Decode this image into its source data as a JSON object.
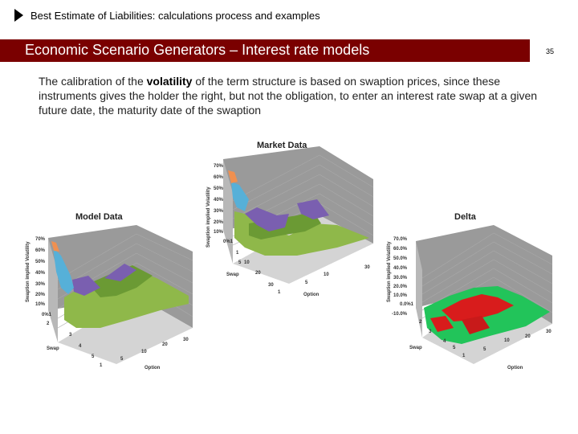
{
  "header": {
    "title": "Best Estimate of Liabilities: calculations process and examples"
  },
  "slide": {
    "title": "Economic Scenario Generators – Interest rate models",
    "page_number": "35",
    "accent_color": "#7a0000"
  },
  "body": {
    "part1": "The calibration of the ",
    "bold": "volatility",
    "part2": " of the term structure is based on swaption prices, since these instruments gives the holder the right, but not the obligation, to enter an interest rate swap at a given future date, the maturity date of the swaption"
  },
  "charts": {
    "market": {
      "title": "Market Data",
      "z_label": "Swaption implied Volatility",
      "z_ticks": [
        "70%",
        "60%",
        "50%",
        "40%",
        "30%",
        "20%",
        "10%",
        "0%1"
      ],
      "swap_label": "Swap",
      "swap_ticks": [
        "1",
        "5",
        "10",
        "20",
        "30"
      ],
      "option_label": "Option",
      "option_ticks": [
        "1",
        "5",
        "10",
        "30"
      ]
    },
    "model": {
      "title": "Model Data",
      "z_label": "Swaption implied Volatility",
      "z_ticks": [
        "70%",
        "60%",
        "50%",
        "40%",
        "30%",
        "20%",
        "10%",
        "0%1"
      ],
      "swap_label": "Swap",
      "swap_ticks": [
        "2",
        "3",
        "4",
        "5",
        "1"
      ],
      "option_label": "Option",
      "option_ticks": [
        "5",
        "10",
        "20",
        "30"
      ]
    },
    "delta": {
      "title": "Delta",
      "z_label": "Swaption implied Volatility",
      "z_ticks": [
        "70.0%",
        "60.0%",
        "50.0%",
        "40.0%",
        "30.0%",
        "20.0%",
        "10.0%",
        "0.0%1",
        "-10.0%"
      ],
      "swap_label": "Swap",
      "swap_ticks": [
        "2",
        "3",
        "4",
        "5",
        "1"
      ],
      "option_label": "Option",
      "option_ticks": [
        "5",
        "10",
        "20",
        "30"
      ]
    }
  }
}
